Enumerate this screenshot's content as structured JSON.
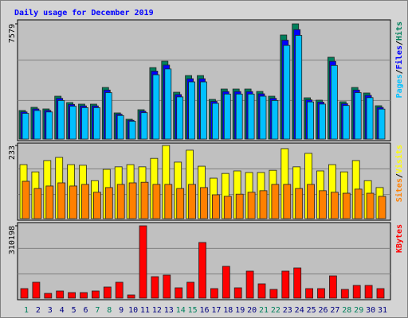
{
  "title": "Daily usage for December 2019",
  "chart_data": [
    {
      "type": "bar",
      "ylim": [
        0,
        7579
      ],
      "yticks": [
        7579
      ],
      "grid": true,
      "separator": "/",
      "series": [
        {
          "name": "Hits",
          "color": "#00805c",
          "values": [
            1882,
            2091,
            1986,
            2822,
            2404,
            2300,
            2300,
            3397,
            1725,
            1307,
            1934,
            4704,
            5122,
            3084,
            4181,
            4181,
            2613,
            3293,
            3293,
            3293,
            3136,
            2822,
            6847,
            7579,
            2718,
            2561,
            5384,
            2457,
            3397,
            3032,
            2195
          ]
        },
        {
          "name": "Files",
          "color": "#0000ff",
          "values": [
            1788,
            1986,
            1887,
            2681,
            2284,
            2185,
            2185,
            3227,
            1639,
            1242,
            1837,
            4469,
            4866,
            2930,
            3972,
            3972,
            2482,
            3128,
            3128,
            3128,
            2979,
            2681,
            6505,
            7200,
            2582,
            2433,
            5115,
            2334,
            3227,
            2880,
            2085
          ]
        },
        {
          "name": "Pages",
          "color": "#00c0ff",
          "values": [
            1694,
            1882,
            1787,
            2540,
            2164,
            2070,
            2070,
            3057,
            1553,
            1176,
            1741,
            4234,
            4610,
            2776,
            3763,
            3763,
            2352,
            2964,
            2964,
            2964,
            2822,
            2540,
            6162,
            6821,
            2446,
            2305,
            4846,
            2211,
            3057,
            2729,
            1976
          ]
        }
      ]
    },
    {
      "type": "bar",
      "ylim": [
        0,
        233
      ],
      "yticks": [
        233
      ],
      "grid": true,
      "separator": "/",
      "series": [
        {
          "name": "Visits",
          "color": "#ffff00",
          "values": [
            172,
            149,
            185,
            195,
            172,
            170,
            121,
            157,
            165,
            172,
            165,
            192,
            233,
            180,
            218,
            167,
            129,
            144,
            152,
            147,
            147,
            154,
            223,
            165,
            208,
            152,
            172,
            149,
            185,
            121,
            99
          ]
        },
        {
          "name": "Sites",
          "color": "#ff8000",
          "values": [
            119,
            96,
            104,
            114,
            104,
            109,
            84,
            99,
            109,
            114,
            116,
            109,
            109,
            96,
            109,
            99,
            76,
            71,
            78,
            84,
            89,
            109,
            109,
            96,
            109,
            89,
            84,
            81,
            94,
            81,
            71
          ]
        }
      ]
    },
    {
      "type": "bar",
      "ylim": [
        0,
        310198
      ],
      "yticks": [
        310198
      ],
      "grid": true,
      "categories": [
        "1",
        "2",
        "3",
        "4",
        "5",
        "6",
        "7",
        "8",
        "9",
        "10",
        "11",
        "12",
        "13",
        "14",
        "15",
        "16",
        "17",
        "18",
        "19",
        "20",
        "21",
        "22",
        "23",
        "24",
        "25",
        "26",
        "27",
        "28",
        "29",
        "30",
        "31"
      ],
      "category_colors": [
        "#00805c",
        "#000080",
        "#000080",
        "#000080",
        "#000080",
        "#000080",
        "#00805c",
        "#00805c",
        "#000080",
        "#000080",
        "#000080",
        "#000080",
        "#000080",
        "#00805c",
        "#00805c",
        "#000080",
        "#000080",
        "#000080",
        "#000080",
        "#000080",
        "#00805c",
        "#00805c",
        "#000080",
        "#000080",
        "#000080",
        "#000080",
        "#000080",
        "#00805c",
        "#00805c",
        "#000080",
        "#000080"
      ],
      "series": [
        {
          "name": "KBytes",
          "color": "#ff0000",
          "values": [
            40908,
            68180,
            20454,
            30681,
            23863,
            23863,
            30681,
            47726,
            68180,
            13636,
            310198,
            92043,
            98861,
            44317,
            68180,
            238630,
            40908,
            136360,
            44317,
            115906,
            61362,
            37499,
            115906,
            129542,
            40908,
            40908,
            95452,
            37499,
            54544,
            54544,
            40908
          ]
        }
      ]
    }
  ]
}
